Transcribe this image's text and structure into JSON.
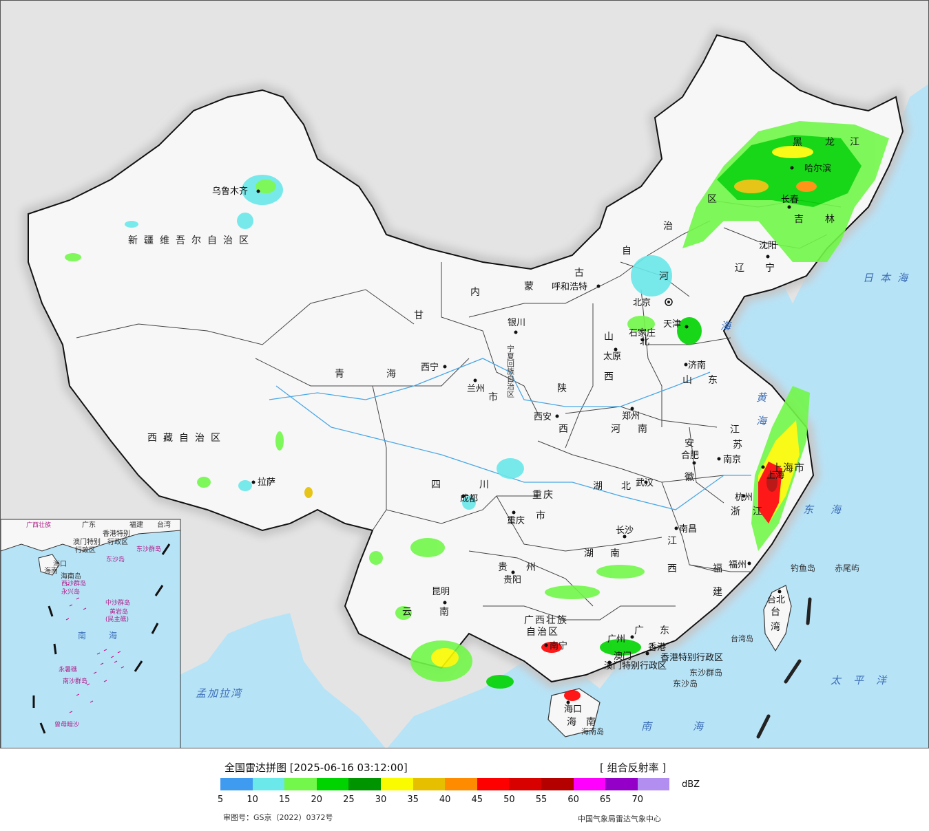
{
  "map": {
    "provinces": [
      {
        "id": "xinjiang",
        "label": "新疆维吾尔自治区"
      },
      {
        "id": "xizang",
        "label": "西藏自治区"
      },
      {
        "id": "qinghai1",
        "label": "青"
      },
      {
        "id": "qinghai2",
        "label": "海"
      },
      {
        "id": "gansu",
        "label": "甘"
      },
      {
        "id": "sichuan1",
        "label": "四"
      },
      {
        "id": "sichuan2",
        "label": "川"
      },
      {
        "id": "yunnan1",
        "label": "云"
      },
      {
        "id": "yunnan2",
        "label": "南"
      },
      {
        "id": "neimenggu1",
        "label": "内"
      },
      {
        "id": "neimenggu2",
        "label": "蒙"
      },
      {
        "id": "neimenggu3",
        "label": "古"
      },
      {
        "id": "neimenggu4",
        "label": "自"
      },
      {
        "id": "neimenggu5",
        "label": "治"
      },
      {
        "id": "neimenggu6",
        "label": "区"
      },
      {
        "id": "heilongjiang1",
        "label": "黑"
      },
      {
        "id": "heilongjiang2",
        "label": "龙"
      },
      {
        "id": "heilongjiang3",
        "label": "江"
      },
      {
        "id": "jilin1",
        "label": "吉"
      },
      {
        "id": "jilin2",
        "label": "林"
      },
      {
        "id": "liaoning1",
        "label": "辽"
      },
      {
        "id": "liaoning2",
        "label": "宁"
      },
      {
        "id": "hebei1",
        "label": "河"
      },
      {
        "id": "hebei2",
        "label": "北"
      },
      {
        "id": "shanxi1",
        "label": "山"
      },
      {
        "id": "shanxi2",
        "label": "西"
      },
      {
        "id": "shaanxi1",
        "label": "陕"
      },
      {
        "id": "shaanxi2",
        "label": "西"
      },
      {
        "id": "shandong1",
        "label": "山"
      },
      {
        "id": "shandong2",
        "label": "东"
      },
      {
        "id": "henan1",
        "label": "河"
      },
      {
        "id": "henan2",
        "label": "南"
      },
      {
        "id": "jiangsu1",
        "label": "江"
      },
      {
        "id": "jiangsu2",
        "label": "苏"
      },
      {
        "id": "anhui1",
        "label": "安"
      },
      {
        "id": "anhui2",
        "label": "徽"
      },
      {
        "id": "hubei1",
        "label": "湖"
      },
      {
        "id": "hubei2",
        "label": "北"
      },
      {
        "id": "hunan1",
        "label": "湖"
      },
      {
        "id": "hunan2",
        "label": "南"
      },
      {
        "id": "jiangxi1",
        "label": "江"
      },
      {
        "id": "jiangxi2",
        "label": "西"
      },
      {
        "id": "zhejiang1",
        "label": "浙"
      },
      {
        "id": "zhejiang2",
        "label": "江"
      },
      {
        "id": "fujian1",
        "label": "福"
      },
      {
        "id": "fujian2",
        "label": "建"
      },
      {
        "id": "guizhou1",
        "label": "贵"
      },
      {
        "id": "guizhou2",
        "label": "州"
      },
      {
        "id": "guangxi1",
        "label": "广西壮族"
      },
      {
        "id": "guangxi2",
        "label": "自治区"
      },
      {
        "id": "guangdong1",
        "label": "广"
      },
      {
        "id": "guangdong2",
        "label": "东"
      },
      {
        "id": "hainan",
        "label": "海南"
      },
      {
        "id": "taiwan1",
        "label": "台"
      },
      {
        "id": "taiwan2",
        "label": "湾"
      },
      {
        "id": "chongqing1",
        "label": "重庆"
      },
      {
        "id": "chongqing2",
        "label": "市"
      },
      {
        "id": "gansu2",
        "label": "市"
      },
      {
        "id": "ningxia",
        "label": "宁夏回族自治区"
      },
      {
        "id": "shanghai",
        "label": "上海市"
      },
      {
        "id": "beijing",
        "label": "北京"
      },
      {
        "id": "tianjin",
        "label": "天津"
      },
      {
        "id": "hk",
        "label": "香港特别行政区"
      },
      {
        "id": "macau",
        "label": "澳门特别行政区"
      }
    ],
    "cities": [
      {
        "id": "urumqi",
        "label": "乌鲁木齐"
      },
      {
        "id": "lhasa",
        "label": "拉萨"
      },
      {
        "id": "xining",
        "label": "西宁"
      },
      {
        "id": "lanzhou",
        "label": "兰州"
      },
      {
        "id": "yinchuan",
        "label": "银川"
      },
      {
        "id": "hohhot",
        "label": "呼和浩特"
      },
      {
        "id": "taiyuan",
        "label": "太原"
      },
      {
        "id": "shijiazhuang",
        "label": "石家庄"
      },
      {
        "id": "xian",
        "label": "西安"
      },
      {
        "id": "zhengzhou",
        "label": "郑州"
      },
      {
        "id": "jinan",
        "label": "济南"
      },
      {
        "id": "nanjing",
        "label": "南京"
      },
      {
        "id": "hefei",
        "label": "合肥"
      },
      {
        "id": "wuhan",
        "label": "武汉"
      },
      {
        "id": "chengdu",
        "label": "成都"
      },
      {
        "id": "chongqing",
        "label": "重庆"
      },
      {
        "id": "guiyang",
        "label": "贵阳"
      },
      {
        "id": "kunming",
        "label": "昆明"
      },
      {
        "id": "changsha",
        "label": "长沙"
      },
      {
        "id": "nanchang",
        "label": "南昌"
      },
      {
        "id": "hangzhou",
        "label": "杭州"
      },
      {
        "id": "fuzhou",
        "label": "福州"
      },
      {
        "id": "taipei",
        "label": "台北"
      },
      {
        "id": "guangzhou",
        "label": "广州"
      },
      {
        "id": "nanning",
        "label": "南宁"
      },
      {
        "id": "haikou",
        "label": "海口"
      },
      {
        "id": "hongkong",
        "label": "香港"
      },
      {
        "id": "macao",
        "label": "澳门"
      },
      {
        "id": "harbin",
        "label": "哈尔滨"
      },
      {
        "id": "changchun",
        "label": "长春"
      },
      {
        "id": "shenyang",
        "label": "沈阳"
      },
      {
        "id": "shanghai_c",
        "label": "上海"
      }
    ],
    "seas": [
      {
        "id": "japan-sea",
        "label": "日本海"
      },
      {
        "id": "bohai",
        "label": "海"
      },
      {
        "id": "yellow1",
        "label": "黄"
      },
      {
        "id": "yellow2",
        "label": "海"
      },
      {
        "id": "east1",
        "label": "东"
      },
      {
        "id": "east2",
        "label": "海"
      },
      {
        "id": "pacific",
        "label": "太平洋"
      },
      {
        "id": "south-sea",
        "label": "南海"
      },
      {
        "id": "bengal",
        "label": "孟加拉湾"
      }
    ],
    "islands": [
      {
        "id": "diaoyu",
        "label": "钓鱼岛"
      },
      {
        "id": "chiwei",
        "label": "赤尾屿"
      },
      {
        "id": "taiwan-isl",
        "label": "台湾岛"
      },
      {
        "id": "dongsha-qd",
        "label": "东沙群岛"
      },
      {
        "id": "dongsha-d",
        "label": "东沙岛"
      },
      {
        "id": "hainan-isl",
        "label": "海南岛"
      }
    ],
    "inset": {
      "labels": [
        "广西壮族",
        "广东",
        "福建",
        "台湾",
        "香港特别",
        "行政区",
        "澳门特别",
        "行政区",
        "东沙群岛",
        "东沙岛",
        "海口",
        "海南",
        "海南岛",
        "西沙群岛",
        "永兴岛",
        "中沙群岛",
        "黄岩岛",
        "(民主礁)",
        "南",
        "海",
        "永暑礁",
        "南沙群岛",
        "曾母暗沙"
      ]
    }
  },
  "legend": {
    "title": "全国雷达拼图 [2025-06-16 03:12:00]",
    "product": "[ 组合反射率 ]",
    "unit": "dBZ",
    "ticks": [
      "5",
      "10",
      "15",
      "20",
      "25",
      "30",
      "35",
      "40",
      "45",
      "50",
      "55",
      "60",
      "65",
      "70"
    ],
    "colors": [
      "#3f9bf0",
      "#6ae8ea",
      "#72f74a",
      "#00d400",
      "#009400",
      "#fbfb00",
      "#e6c000",
      "#ff8b00",
      "#ff0000",
      "#d90000",
      "#b50000",
      "#ff00ff",
      "#9400c8",
      "#b18ef0"
    ],
    "approval": "审图号：GS京（2022）0372号",
    "agency": "中国气象局雷达气象中心"
  }
}
